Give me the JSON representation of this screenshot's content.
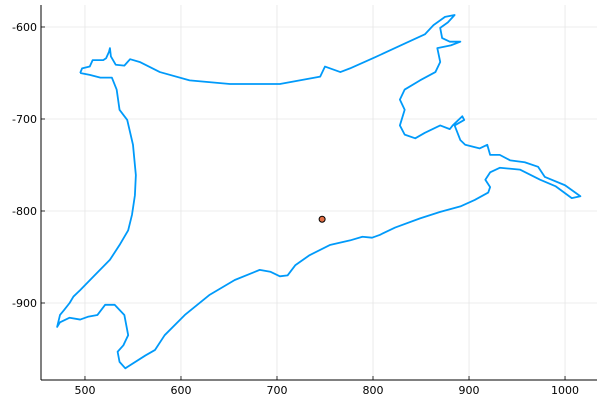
{
  "chart_data": {
    "type": "line",
    "xlim": [
      454.2,
      1033.3
    ],
    "ylim": [
      -983.7,
      -576.1
    ],
    "xticks": [
      500,
      600,
      700,
      800,
      900,
      1000
    ],
    "yticks": [
      -900,
      -800,
      -700,
      -600
    ],
    "grid": true,
    "series": [
      {
        "type": "line",
        "color": "#009afa",
        "x": [
          495,
          497,
          505,
          508,
          519,
          522,
          525,
          526,
          527,
          532,
          541,
          547,
          557,
          578,
          609,
          651,
          703,
          745,
          750,
          758,
          766,
          776,
          802,
          833,
          854,
          863,
          875,
          885,
          878,
          870,
          872,
          880,
          891,
          881,
          867,
          870,
          865,
          849,
          833,
          828,
          833,
          828,
          833,
          844,
          854,
          870,
          880,
          883,
          893,
          895,
          885,
          891,
          896,
          911,
          919,
          922,
          932,
          943,
          958,
          972,
          979,
          1000,
          1016,
          1007,
          990,
          974,
          953,
          932,
          922,
          917,
          922,
          920,
          906,
          891,
          870,
          849,
          823,
          807,
          799,
          789,
          776,
          755,
          734,
          719,
          711,
          703,
          693,
          682,
          656,
          630,
          604,
          583,
          573,
          563,
          542,
          536,
          534,
          540,
          545,
          541,
          531,
          521,
          513,
          503,
          495,
          484,
          474,
          471,
          474,
          478,
          484,
          488,
          495,
          510,
          526,
          536,
          545,
          549,
          552,
          553,
          550,
          544,
          536,
          533,
          528,
          516,
          505,
          495
        ],
        "y": [
          -650,
          -645,
          -643,
          -636,
          -636,
          -634,
          -627,
          -623,
          -632,
          -641,
          -642,
          -635,
          -638,
          -649,
          -658,
          -662,
          -662,
          -654,
          -643,
          -646,
          -649,
          -645,
          -633,
          -618,
          -608,
          -598,
          -589,
          -587,
          -595,
          -601,
          -612,
          -616,
          -616,
          -620,
          -623,
          -638,
          -649,
          -658,
          -668,
          -679,
          -690,
          -707,
          -717,
          -721,
          -715,
          -707,
          -711,
          -707,
          -697,
          -701,
          -707,
          -723,
          -728,
          -732,
          -728,
          -739,
          -739,
          -745,
          -747,
          -752,
          -763,
          -772,
          -784,
          -786,
          -773,
          -766,
          -755,
          -753,
          -758,
          -766,
          -774,
          -780,
          -788,
          -795,
          -801,
          -808,
          -818,
          -826,
          -829,
          -828,
          -832,
          -837,
          -848,
          -859,
          -870,
          -871,
          -866,
          -864,
          -875,
          -891,
          -913,
          -935,
          -951,
          -957,
          -971,
          -964,
          -953,
          -946,
          -935,
          -913,
          -902,
          -902,
          -913,
          -915,
          -918,
          -916,
          -921,
          -926,
          -913,
          -908,
          -900,
          -893,
          -886,
          -870,
          -853,
          -837,
          -821,
          -804,
          -783,
          -761,
          -728,
          -701,
          -690,
          -668,
          -655,
          -655,
          -652,
          -650
        ]
      },
      {
        "type": "scatter",
        "color": "#e26f46",
        "edgecolor": "#000000",
        "x": [
          747
        ],
        "y": [
          -809
        ]
      }
    ]
  }
}
